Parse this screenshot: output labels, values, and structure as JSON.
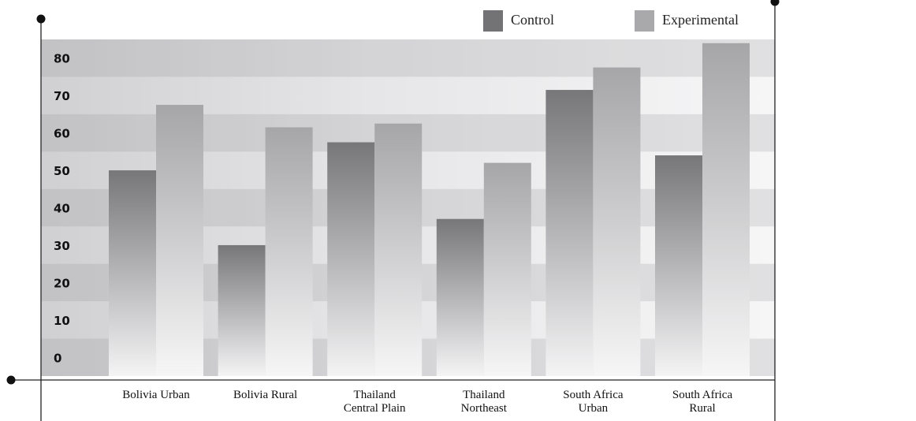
{
  "chart_data": {
    "type": "bar",
    "categories": [
      [
        "Bolivia Urban"
      ],
      [
        "Bolivia Rural"
      ],
      [
        "Thailand",
        "Central Plain"
      ],
      [
        "Thailand",
        "Northeast"
      ],
      [
        "South Africa",
        "Urban"
      ],
      [
        "South Africa",
        "Rural"
      ]
    ],
    "series": [
      {
        "name": "Control",
        "values": [
          50,
          30,
          57.5,
          37,
          71.5,
          54
        ],
        "color": "#777779"
      },
      {
        "name": "Experimental",
        "values": [
          67.5,
          61.5,
          62.5,
          52,
          77.5,
          84
        ],
        "color": "#a9a9ab"
      }
    ],
    "yticks": [
      "0",
      "10",
      "20",
      "30",
      "40",
      "50",
      "60",
      "70",
      "80"
    ],
    "ylim": [
      -5,
      85
    ],
    "title": "",
    "xlabel": "",
    "ylabel": "",
    "legend_position": "top-right",
    "grid": "alternating horizontal bands"
  }
}
